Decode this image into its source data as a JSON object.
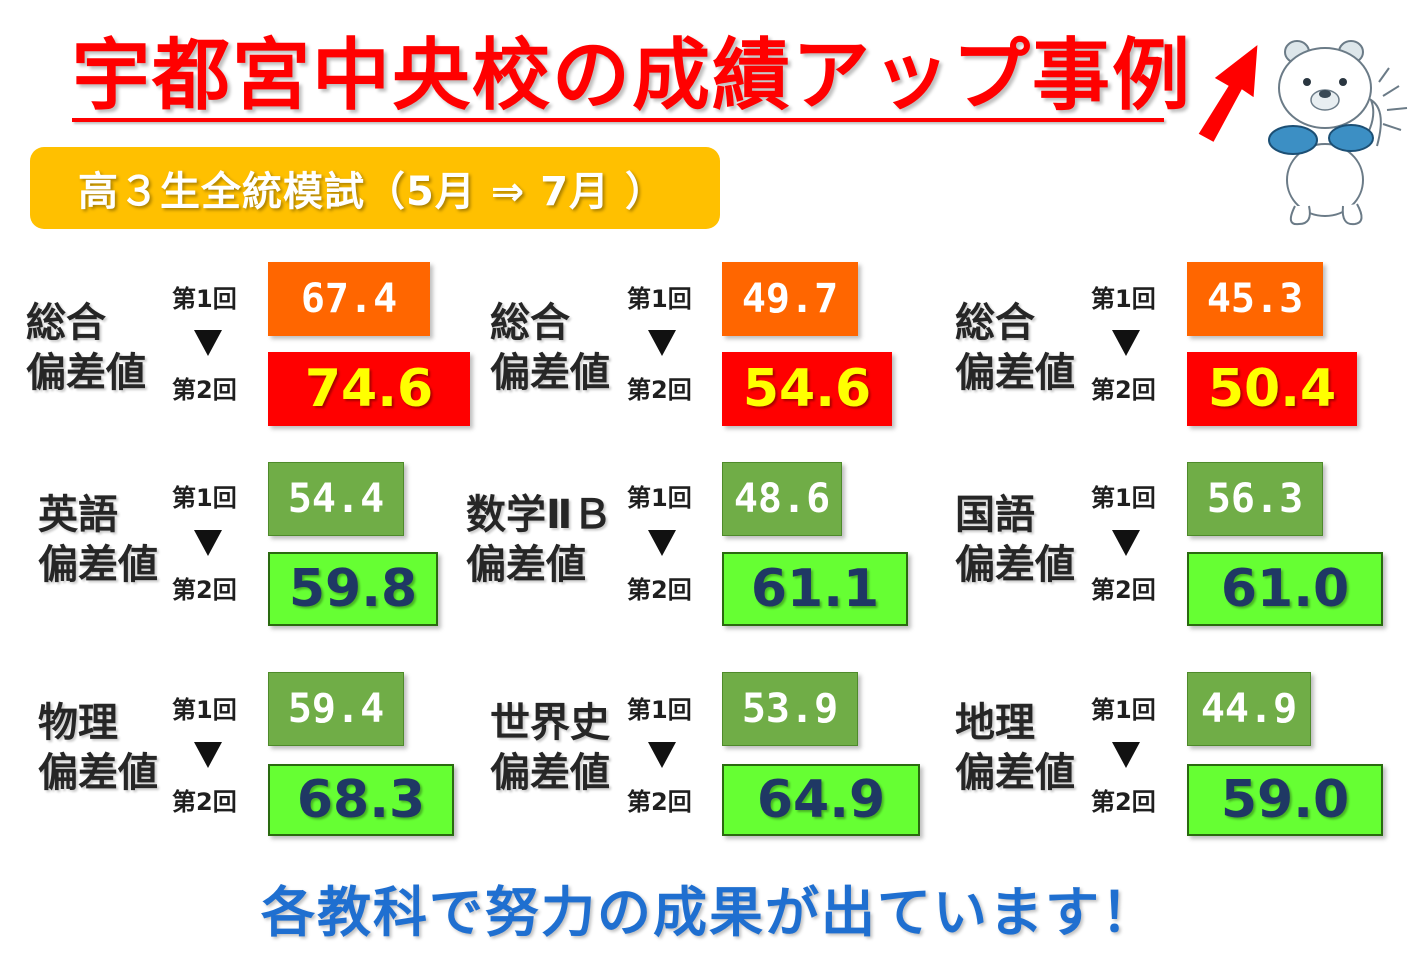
{
  "title": "宇都宮中央校の成績アップ事例",
  "subtitle": "高３生全統模試（5月 ⇒ 7月 ）",
  "round_labels": {
    "first": "第1回",
    "second": "第2回"
  },
  "results": [
    {
      "subject_line1": "総合",
      "subject_line2": "偏差値",
      "first": "67.4",
      "second": "74.6",
      "style": "overall"
    },
    {
      "subject_line1": "総合",
      "subject_line2": "偏差値",
      "first": "49.7",
      "second": "54.6",
      "style": "overall"
    },
    {
      "subject_line1": "総合",
      "subject_line2": "偏差値",
      "first": "45.3",
      "second": "50.4",
      "style": "overall"
    },
    {
      "subject_line1": "英語",
      "subject_line2": "偏差値",
      "first": "54.4",
      "second": "59.8",
      "style": "subject"
    },
    {
      "subject_line1": "数学ⅡＢ",
      "subject_line2": "偏差値",
      "first": "48.6",
      "second": "61.1",
      "style": "subject"
    },
    {
      "subject_line1": "国語",
      "subject_line2": "偏差値",
      "first": "56.3",
      "second": "61.0",
      "style": "subject"
    },
    {
      "subject_line1": "物理",
      "subject_line2": "偏差値",
      "first": "59.4",
      "second": "68.3",
      "style": "subject"
    },
    {
      "subject_line1": "世界史",
      "subject_line2": "偏差値",
      "first": "53.9",
      "second": "64.9",
      "style": "subject"
    },
    {
      "subject_line1": "地理",
      "subject_line2": "偏差値",
      "first": "44.9",
      "second": "59.0",
      "style": "subject"
    }
  ],
  "footer": "各教科で努力の成果が出ています！",
  "icons": {
    "arrow": "red-up-arrow-icon",
    "mascot": "bear-mascot-icon"
  },
  "colors": {
    "title": "#ff0000",
    "subtitle_bg": "#ffc000",
    "first_overall": "#ff6600",
    "second_overall": "#ff0000",
    "first_subject": "#70ad47",
    "second_subject": "#66ff33",
    "footer": "#1f6fd0"
  }
}
